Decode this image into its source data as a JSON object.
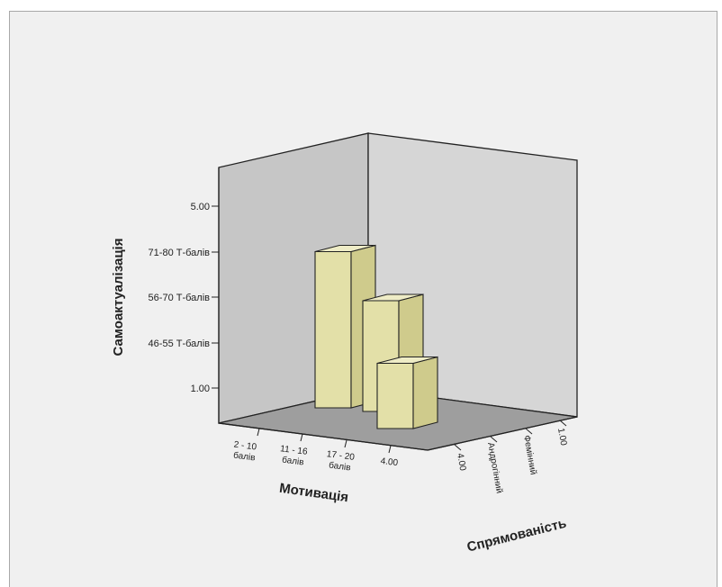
{
  "chart_data": {
    "type": "bar",
    "subtype": "3d-bar",
    "title": "",
    "ylabel": "Самоактуалізація",
    "xlabel": "Мотивація",
    "zlabel": "Спрямованість",
    "y_ticks": [
      "1.00",
      "46-55 Т-балів",
      "56-70 Т-балів",
      "71-80 Т-балів",
      "5.00"
    ],
    "x_categories": [
      {
        "line1": "2 - 10",
        "line2": "балів"
      },
      {
        "line1": "11 - 16",
        "line2": "балів"
      },
      {
        "line1": "17 - 20",
        "line2": "балів"
      },
      {
        "line1": "4.00",
        "line2": ""
      }
    ],
    "z_categories": [
      "4.00",
      "Андрогінний",
      "Фемінний",
      "1.00"
    ],
    "bars": [
      {
        "x": "11 - 16 балів",
        "z": "Андрогінний",
        "value": 4.0
      },
      {
        "x": "17 - 20 балів",
        "z": "Андрогінний",
        "value": 3.0
      },
      {
        "x": "17 - 20 балів",
        "z": "4.00",
        "value": 2.0
      }
    ],
    "ylim": [
      1,
      5
    ],
    "bar_color": "#e3e0a8",
    "wall_colors": {
      "back": "#c8c8c8",
      "right": "#d4d4d4",
      "floor": "#9a9a9a"
    }
  }
}
